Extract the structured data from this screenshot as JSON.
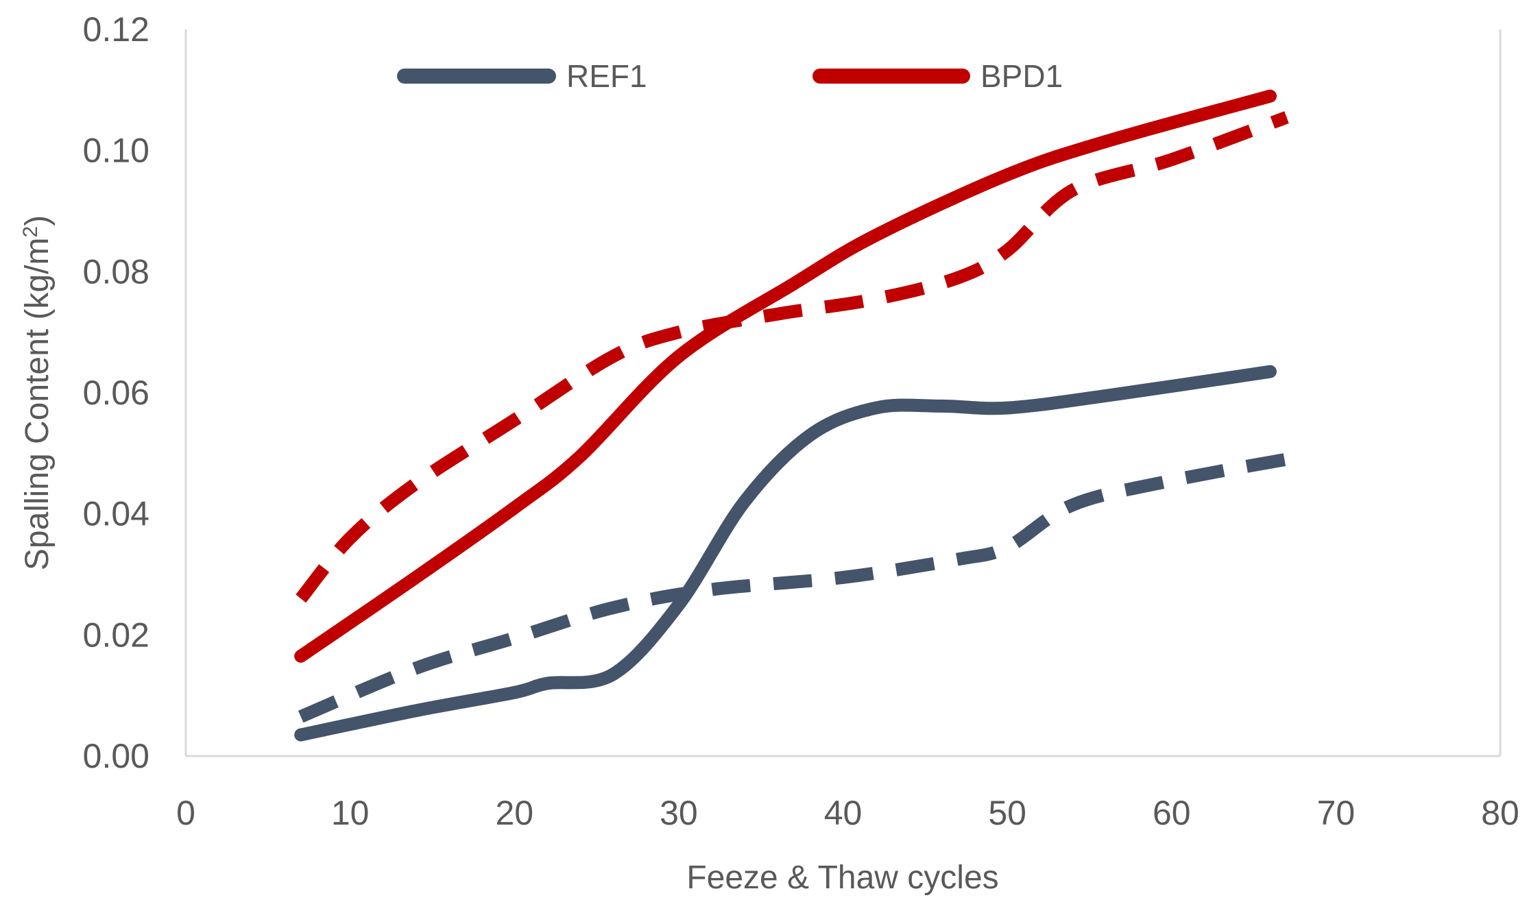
{
  "chart_data": {
    "type": "line",
    "title": "",
    "xlabel": "Feeze & Thaw cycles",
    "ylabel_main": "Spalling Content (kg/m",
    "ylabel_sup": "2",
    "ylabel_tail": ")",
    "xlim": [
      0,
      80
    ],
    "ylim": [
      0,
      0.12
    ],
    "x_ticks": [
      0,
      10,
      20,
      30,
      40,
      50,
      60,
      70,
      80
    ],
    "x_tick_labels": [
      "0",
      "10",
      "20",
      "30",
      "40",
      "50",
      "60",
      "70",
      "80"
    ],
    "y_ticks": [
      0,
      0.02,
      0.04,
      0.06,
      0.08,
      0.1,
      0.12
    ],
    "y_tick_labels": [
      "0.00",
      "0.02",
      "0.04",
      "0.06",
      "0.08",
      "0.10",
      "0.12"
    ],
    "grid": false,
    "legend_position": "top",
    "legend": [
      {
        "name": "REF1",
        "color": "#44546a"
      },
      {
        "name": "BPD1",
        "color": "#c00000"
      }
    ],
    "series": [
      {
        "name": "REF1",
        "style": "solid",
        "legend": true,
        "color": "#44546a",
        "x": [
          7,
          14,
          20,
          22,
          26,
          30,
          34,
          38,
          42,
          46,
          50,
          56,
          66
        ],
        "y": [
          0.0035,
          0.0075,
          0.0105,
          0.012,
          0.0135,
          0.025,
          0.042,
          0.053,
          0.0575,
          0.0578,
          0.0575,
          0.0595,
          0.0635
        ]
      },
      {
        "name": "BPD1",
        "style": "solid",
        "legend": true,
        "color": "#c00000",
        "x": [
          7,
          14,
          20,
          24,
          30,
          37,
          42,
          50,
          56,
          66
        ],
        "y": [
          0.0165,
          0.0295,
          0.041,
          0.0495,
          0.066,
          0.078,
          0.086,
          0.096,
          0.1015,
          0.109
        ]
      },
      {
        "name": "REF1 (dashed)",
        "style": "dashed",
        "legend": false,
        "color": "#44546a",
        "x": [
          7,
          14,
          20,
          26,
          32,
          40,
          47,
          50,
          54,
          60,
          68
        ],
        "y": [
          0.0065,
          0.0145,
          0.0195,
          0.0245,
          0.0275,
          0.0295,
          0.0325,
          0.0345,
          0.0415,
          0.0455,
          0.0495
        ]
      },
      {
        "name": "BPD1 (dashed)",
        "style": "dashed",
        "legend": false,
        "color": "#c00000",
        "x": [
          7,
          10,
          14,
          20,
          26,
          30,
          36,
          42,
          47,
          50,
          54,
          60,
          67
        ],
        "y": [
          0.026,
          0.036,
          0.045,
          0.0555,
          0.066,
          0.07,
          0.073,
          0.0755,
          0.079,
          0.0835,
          0.0935,
          0.0985,
          0.1055
        ]
      }
    ]
  }
}
